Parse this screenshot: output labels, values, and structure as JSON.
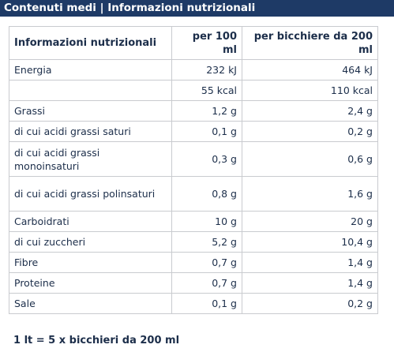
{
  "header": {
    "title": "Contenuti medi | Informazioni nutrizionali"
  },
  "table": {
    "columns": [
      "Informazioni nutrizionali",
      "per 100 ml",
      "per bicchiere da 200 ml"
    ],
    "rows": [
      {
        "label": "Energia",
        "per100": "232 kJ",
        "perGlass": "464 kJ",
        "indent": false
      },
      {
        "label": "",
        "per100": "55 kcal",
        "perGlass": "110 kcal",
        "indent": false
      },
      {
        "label": "Grassi",
        "per100": "1,2 g",
        "perGlass": "2,4 g",
        "indent": false
      },
      {
        "label": "di cui acidi grassi saturi",
        "per100": "0,1 g",
        "perGlass": "0,2 g",
        "indent": true
      },
      {
        "label": "di cui acidi grassi monoinsaturi",
        "per100": "0,3 g",
        "perGlass": "0,6 g",
        "indent": true
      },
      {
        "label": "di cui acidi grassi polinsaturi",
        "per100": "0,8 g",
        "perGlass": "1,6 g",
        "indent": true
      },
      {
        "label": "Carboidrati",
        "per100": "10 g",
        "perGlass": "20 g",
        "indent": false
      },
      {
        "label": "di cui zuccheri",
        "per100": "5,2 g",
        "perGlass": "10,4 g",
        "indent": true
      },
      {
        "label": "Fibre",
        "per100": "0,7 g",
        "perGlass": "1,4 g",
        "indent": false
      },
      {
        "label": "Proteine",
        "per100": "0,7 g",
        "perGlass": "1,4 g",
        "indent": false
      },
      {
        "label": "Sale",
        "per100": "0,1 g",
        "perGlass": "0,2 g",
        "indent": false
      }
    ]
  },
  "footer": {
    "note": "1 lt = 5 x bicchieri da 200 ml"
  },
  "colors": {
    "header_bg": "#1e3a66",
    "text": "#1c2e4a",
    "border": "#c9cbcf"
  }
}
